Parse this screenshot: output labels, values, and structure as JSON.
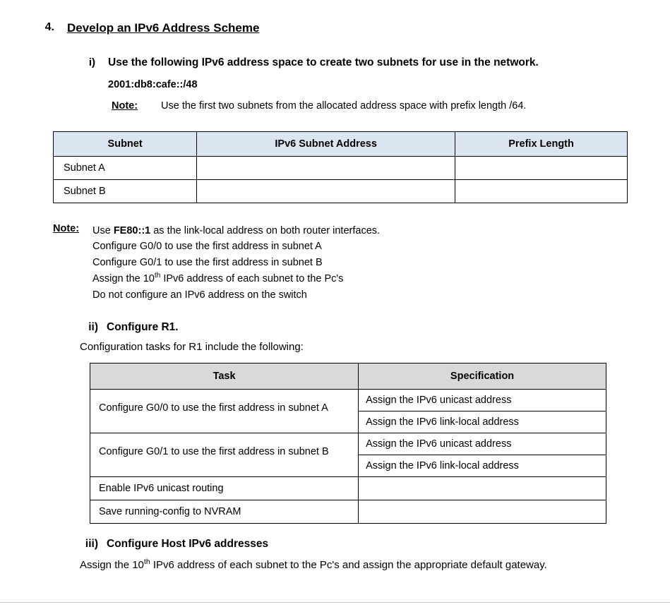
{
  "section_number": "4.",
  "section_title": "Develop an  IPv6 Address Scheme",
  "sub_i": {
    "num": "i)",
    "text": "Use the following IPv6 address space to create two subnets for use in the network.",
    "addr": "2001:db8:cafe::/48",
    "note_label": "Note:",
    "note_text": "Use the first two subnets from the allocated address space with prefix length /64."
  },
  "table1": {
    "headers": [
      "Subnet",
      "IPv6 Subnet Address",
      "Prefix Length"
    ],
    "rows": [
      {
        "c0": "Subnet A",
        "c1": "",
        "c2": ""
      },
      {
        "c0": "Subnet B",
        "c1": "",
        "c2": ""
      }
    ],
    "header_bg": "#dbe5f1"
  },
  "note2": {
    "label": "Note:",
    "lines": [
      "Use <b>FE80::1</b> as the link-local address on both router interfaces.",
      "Configure G0/0 to use the first address in subnet A",
      "Configure G0/1 to use the first address in subnet B",
      "Assign the 10<sup>th</sup> IPv6 address of each subnet to the Pc's",
      "Do not configure an IPv6 address on the switch"
    ]
  },
  "sub_ii": {
    "num": "ii)",
    "title": "Configure R1.",
    "intro": "Configuration tasks for R1 include the following:"
  },
  "table2": {
    "headers": [
      "Task",
      "Specification"
    ],
    "header_bg": "#d9d9d9",
    "rows": [
      {
        "task": "Configure G0/0 to use the first address in subnet A",
        "specs": [
          "Assign the IPv6 unicast address",
          "Assign the IPv6 link-local address"
        ]
      },
      {
        "task": "Configure G0/1 to use the first address in subnet B",
        "specs": [
          "Assign the IPv6 unicast address",
          "Assign the IPv6 link-local address"
        ]
      },
      {
        "task": "Enable IPv6 unicast routing",
        "specs": [
          ""
        ]
      },
      {
        "task": "Save running-config to NVRAM",
        "specs": [
          ""
        ]
      }
    ]
  },
  "sub_iii": {
    "num": "iii)",
    "title": "Configure Host IPv6 addresses",
    "body": "Assign the 10<sup>th</sup> IPv6 address of each subnet to the Pc's and assign the appropriate default gateway."
  }
}
